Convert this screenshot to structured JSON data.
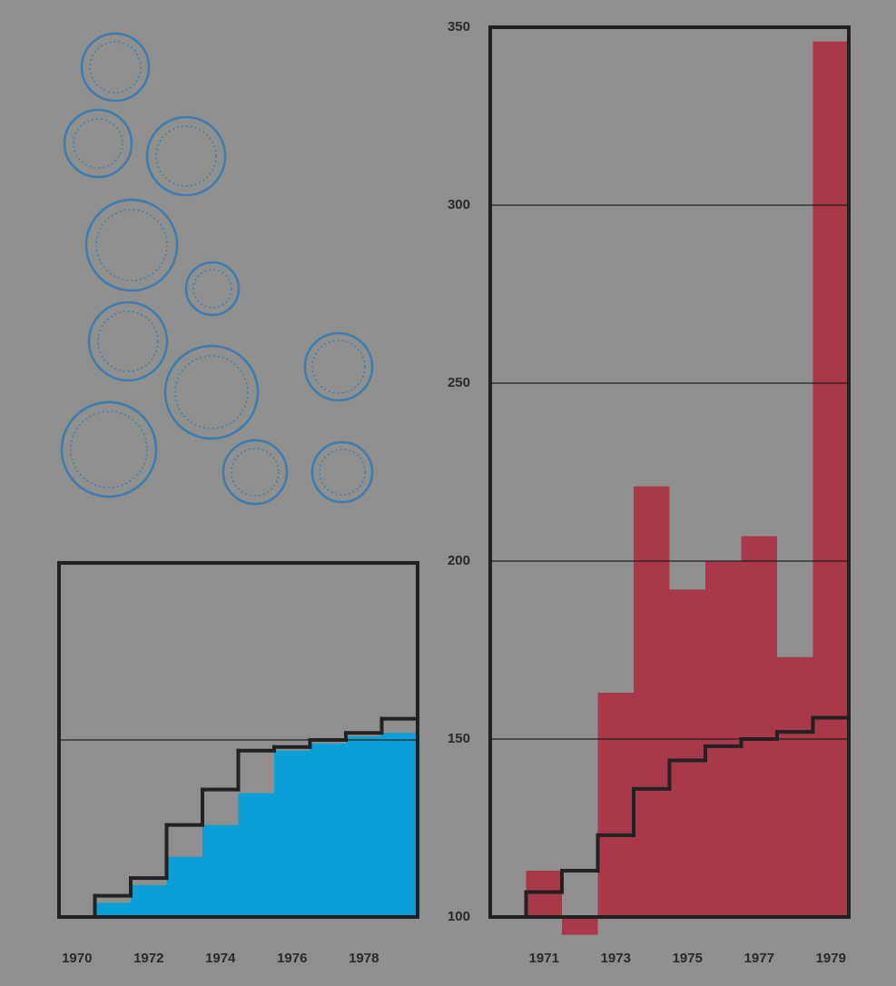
{
  "chart_data": [
    {
      "type": "step-combo",
      "categories": [
        "1970",
        null,
        "1972",
        null,
        "1974",
        null,
        "1976",
        null,
        "1978",
        null
      ],
      "series": [
        {
          "type": "step-area",
          "color": "#0b9fd8",
          "values": [
            null,
            104,
            109,
            117,
            126,
            135,
            147,
            149,
            151,
            152
          ]
        },
        {
          "type": "step-line",
          "color": "#222222",
          "values": [
            100,
            106,
            111,
            126,
            136,
            147,
            148,
            150,
            152,
            156
          ]
        }
      ],
      "ylim": [
        100,
        200
      ],
      "yticks": [
        150
      ],
      "tick_labels": false,
      "grid": true
    },
    {
      "type": "step-combo",
      "categories": [
        null,
        "1971",
        null,
        "1973",
        null,
        "1975",
        null,
        "1977",
        null,
        "1979"
      ],
      "series": [
        {
          "type": "bar",
          "color": "#a8384a",
          "values": [
            null,
            113,
            95,
            163,
            221,
            192,
            200,
            207,
            173,
            346
          ]
        },
        {
          "type": "step-line",
          "color": "#222222",
          "values": [
            100,
            107,
            113,
            123,
            136,
            144,
            148,
            150,
            152,
            156
          ]
        }
      ],
      "ylim": [
        100,
        350
      ],
      "yticks": [
        100,
        150,
        200,
        250,
        300,
        350
      ],
      "tick_labels": true,
      "grid": true
    }
  ]
}
